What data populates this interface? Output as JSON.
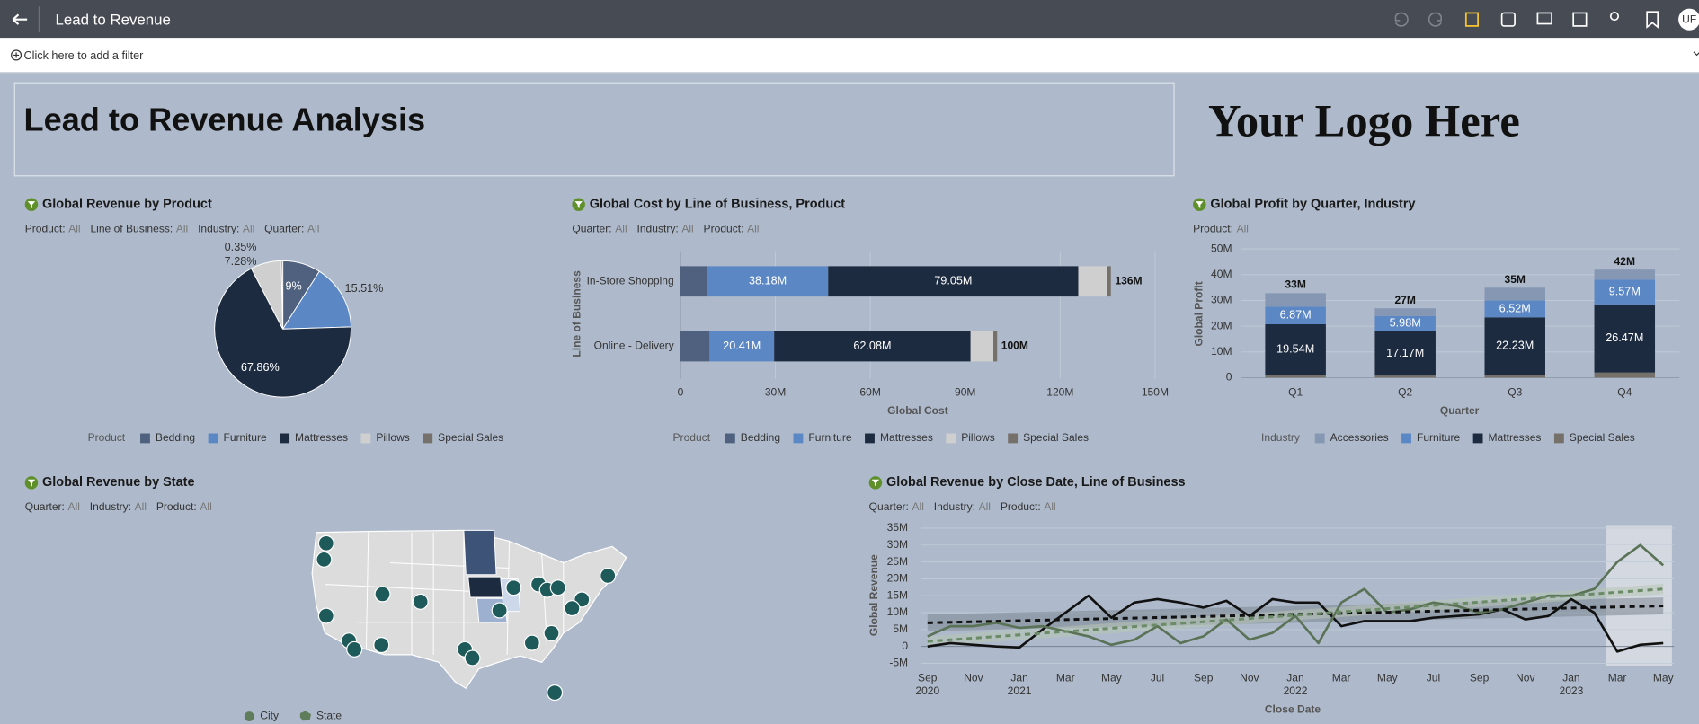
{
  "app_bar": {
    "title": "Lead to Revenue",
    "user_initials": "UF"
  },
  "filter_bar": {
    "placeholder": "Click here to add a filter"
  },
  "title_panel": {
    "title": "Lead to Revenue Analysis",
    "logo_text": "Your Logo Here"
  },
  "chart_data": [
    {
      "type": "pie",
      "title": "Global Revenue by Product",
      "filters": [
        {
          "label": "Product:",
          "value": "All"
        },
        {
          "label": "Line of Business:",
          "value": "All"
        },
        {
          "label": "Industry:",
          "value": "All"
        },
        {
          "label": "Quarter:",
          "value": "All"
        }
      ],
      "legend_title": "Product",
      "categories": [
        "Bedding",
        "Furniture",
        "Mattresses",
        "Pillows",
        "Special Sales"
      ],
      "values": [
        9,
        15.51,
        67.86,
        7.28,
        0.35
      ],
      "value_labels": [
        "9%",
        "15.51%",
        "67.86%",
        "7.28%",
        "0.35%"
      ],
      "colors": [
        "#4f617e",
        "#5b87c5",
        "#1d2b40",
        "#cfcfcf",
        "#76706a"
      ]
    },
    {
      "type": "hbar",
      "title": "Global Cost by Line of Business, Product",
      "filters": [
        {
          "label": "Quarter:",
          "value": "All"
        },
        {
          "label": "Industry:",
          "value": "All"
        },
        {
          "label": "Product:",
          "value": "All"
        }
      ],
      "legend_title": "Product",
      "x_label": "Global Cost",
      "y_label": "Line of Business",
      "categories": [
        "In-Store Shopping",
        "Online - Delivery"
      ],
      "series": [
        {
          "name": "Bedding",
          "color": "#4f617e",
          "values": [
            8.5,
            9.2
          ]
        },
        {
          "name": "Furniture",
          "color": "#5b87c5",
          "values": [
            38.18,
            20.41
          ],
          "value_labels": [
            "38.18M",
            "20.41M"
          ]
        },
        {
          "name": "Mattresses",
          "color": "#1d2b40",
          "values": [
            79.05,
            62.08
          ],
          "value_labels": [
            "79.05M",
            "62.08M"
          ]
        },
        {
          "name": "Pillows",
          "color": "#cfcfcf",
          "values": [
            9,
            7.2
          ]
        },
        {
          "name": "Special Sales",
          "color": "#76706a",
          "values": [
            1.3,
            1.2
          ]
        }
      ],
      "totals": [
        136,
        100
      ],
      "total_labels": [
        "136M",
        "100M"
      ],
      "xlim": [
        0,
        150
      ],
      "xticks": [
        0,
        {
          "value": 30,
          "label": "30M"
        },
        {
          "value": 60,
          "label": "60M"
        },
        {
          "value": 90,
          "label": "90M"
        },
        {
          "value": 120,
          "label": "120M"
        },
        {
          "value": 150,
          "label": "150M"
        }
      ]
    },
    {
      "type": "vbar",
      "title": "Global Profit by Quarter, Industry",
      "filters": [
        {
          "label": "Product:",
          "value": "All"
        }
      ],
      "legend_title": "Industry",
      "x_label": "Quarter",
      "y_label": "Global Profit",
      "categories": [
        "Q1",
        "Q2",
        "Q3",
        "Q4"
      ],
      "series": [
        {
          "name": "Accessories",
          "color": "#8597b3",
          "values": [
            5.2,
            3,
            5,
            3.9
          ]
        },
        {
          "name": "Furniture",
          "color": "#5b87c5",
          "values": [
            6.87,
            5.98,
            6.52,
            9.57
          ],
          "value_labels": [
            "6.87M",
            "5.98M",
            "6.52M",
            "9.57M"
          ]
        },
        {
          "name": "Mattresses",
          "color": "#1d2b40",
          "values": [
            19.54,
            17.17,
            22.23,
            26.47
          ],
          "value_labels": [
            "19.54M",
            "17.17M",
            "22.23M",
            "26.47M"
          ]
        },
        {
          "name": "Special Sales",
          "color": "#76706a",
          "values": [
            1.2,
            0.8,
            1.2,
            2
          ]
        }
      ],
      "totals": [
        33,
        27,
        35,
        42
      ],
      "total_labels": [
        "33M",
        "27M",
        "35M",
        "42M"
      ],
      "ylim": [
        0,
        50
      ],
      "yticks": [
        0,
        {
          "value": 10,
          "label": "10M"
        },
        {
          "value": 20,
          "label": "20M"
        },
        {
          "value": 30,
          "label": "30M"
        },
        {
          "value": 40,
          "label": "40M"
        },
        {
          "value": 50,
          "label": "50M"
        }
      ]
    },
    {
      "type": "map",
      "title": "Global Revenue by State",
      "filters": [
        {
          "label": "Quarter:",
          "value": "All"
        },
        {
          "label": "Industry:",
          "value": "All"
        },
        {
          "label": "Product:",
          "value": "All"
        }
      ],
      "legend": [
        "City",
        "State"
      ]
    },
    {
      "type": "line",
      "title": "Global Revenue by Close Date, Line of Business",
      "filters": [
        {
          "label": "Quarter:",
          "value": "All"
        },
        {
          "label": "Industry:",
          "value": "All"
        },
        {
          "label": "Product:",
          "value": "All"
        }
      ],
      "x_label": "Close Date",
      "y_label": "Global Revenue",
      "categories": [
        "Sep 2020",
        null,
        "Nov",
        null,
        "Jan 2021",
        null,
        "Mar",
        null,
        "May",
        null,
        "Jul",
        null,
        "Sep",
        null,
        "Nov",
        null,
        "Jan 2022",
        null,
        "Mar",
        null,
        "May",
        null,
        "Jul",
        null,
        "Sep",
        null,
        "Nov",
        null,
        "Jan 2023",
        null,
        "Mar",
        null,
        "May"
      ],
      "series": [
        {
          "color": "#111111",
          "values": [
            0,
            1,
            0.5,
            0,
            -0.3,
            5,
            10,
            15,
            8.5,
            13,
            14,
            13,
            11.5,
            13.5,
            9,
            14,
            13,
            13,
            6,
            7.5,
            7.5,
            7.5,
            8.5,
            9,
            9.5,
            11,
            8,
            9,
            14,
            10,
            -1.5,
            0.5,
            1
          ]
        },
        {
          "color": "#5a7256",
          "values": [
            3,
            6,
            6,
            7,
            5.5,
            6,
            4.5,
            3,
            0.5,
            2,
            6,
            1,
            3,
            8,
            2,
            4,
            9,
            1,
            13,
            17,
            10,
            11,
            13,
            12,
            10,
            11,
            13,
            15,
            15,
            17,
            25,
            30,
            24
          ]
        }
      ],
      "trend_lines": [
        {
          "color": "#111111",
          "start": 7,
          "end": 12,
          "band": 2.5
        },
        {
          "color": "#6b8a66",
          "start": 1.5,
          "end": 17,
          "band": 1.5
        }
      ],
      "ylim": [
        -5,
        35
      ],
      "yticks": [
        {
          "value": -5,
          "label": "-5M"
        },
        0,
        {
          "value": 5,
          "label": "5M"
        },
        {
          "value": 10,
          "label": "10M"
        },
        {
          "value": 15,
          "label": "15M"
        },
        {
          "value": 20,
          "label": "20M"
        },
        {
          "value": 25,
          "label": "25M"
        },
        {
          "value": 30,
          "label": "30M"
        },
        {
          "value": 35,
          "label": "35M"
        }
      ]
    }
  ]
}
